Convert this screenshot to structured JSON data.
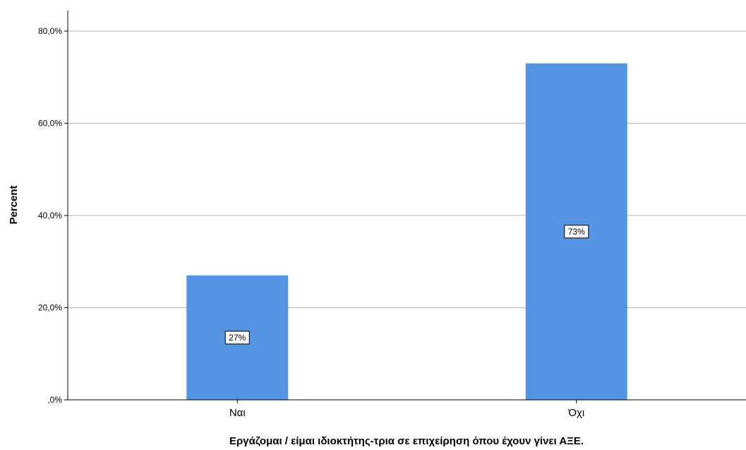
{
  "chart_data": {
    "type": "bar",
    "categories": [
      "Ναι",
      "Όχι"
    ],
    "values": [
      27,
      73
    ],
    "data_labels": [
      "27%",
      "73%"
    ],
    "xlabel": "Εργάζομαι / είμαι ιδιοκτήτης-τρια σε επιχείρηση όπου έχουν γίνει ΑΞΕ.",
    "ylabel": "Percent",
    "ylim": [
      0,
      80
    ],
    "yticks": [
      0,
      20,
      40,
      60,
      80
    ],
    "ytick_labels": [
      ",0%",
      "20,0%",
      "40,0%",
      "60,0%",
      "80,0%"
    ],
    "grid": true,
    "bar_color": "#5594e3"
  }
}
